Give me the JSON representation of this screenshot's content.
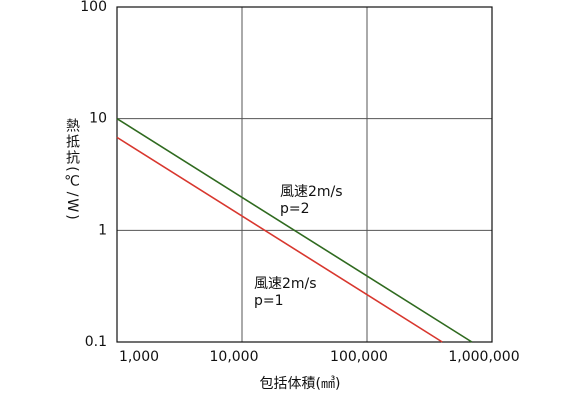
{
  "chart_data": {
    "type": "line",
    "log_x": true,
    "log_y": true,
    "grid": true,
    "x_label": "包括体積(㎣)",
    "y_label": "熱抵抗(℃/W)",
    "xlim": [
      1000,
      1000000
    ],
    "ylim": [
      0.1,
      100
    ],
    "xticks": [
      {
        "value": 1000,
        "label": "1,000"
      },
      {
        "value": 10000,
        "label": "10,000"
      },
      {
        "value": 100000,
        "label": "100,000"
      },
      {
        "value": 1000000,
        "label": "1,000,000"
      }
    ],
    "yticks": [
      0.1,
      1,
      10,
      100
    ],
    "series": [
      {
        "label": [
          "風速2m/s",
          "p=2"
        ],
        "color": "#2f6a1f",
        "x": [
          1000,
          690000
        ],
        "values": [
          10,
          0.1
        ]
      },
      {
        "label": [
          "風速2m/s",
          "p=1"
        ],
        "color": "#d8372e",
        "x": [
          1000,
          400000
        ],
        "values": [
          6.8,
          0.1
        ]
      }
    ]
  }
}
